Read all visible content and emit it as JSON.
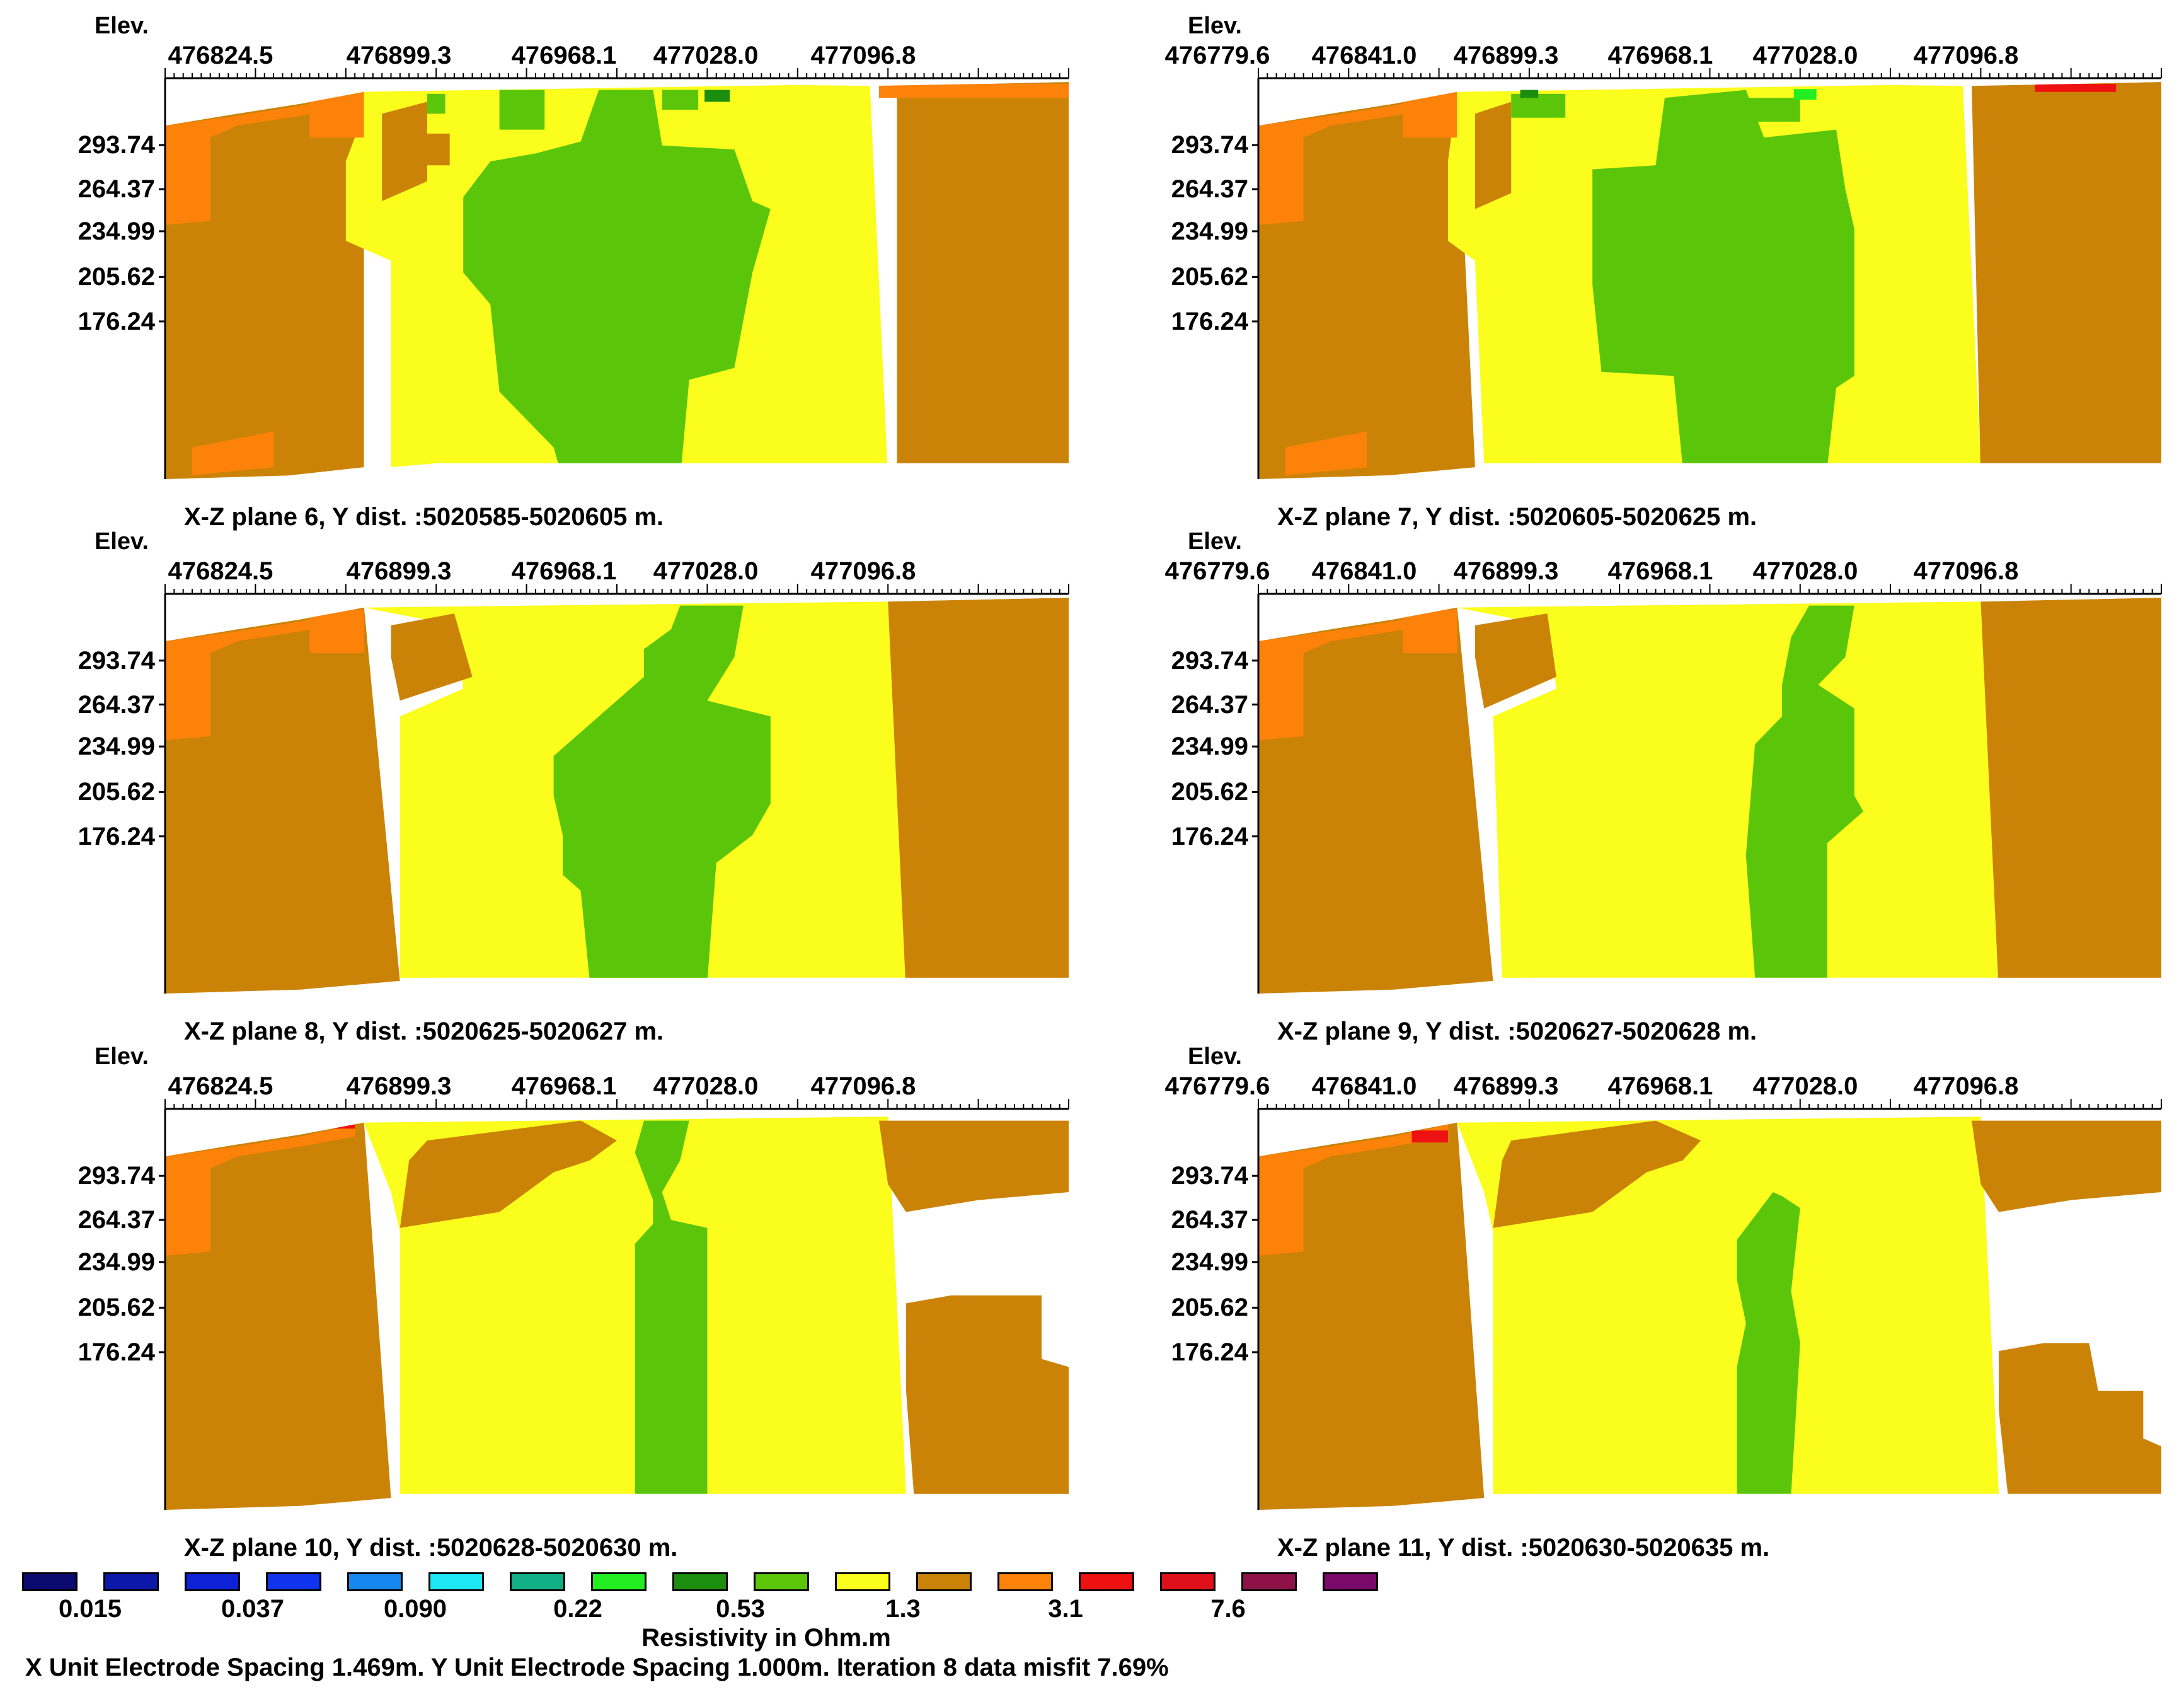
{
  "colors": {
    "orange": "#fd8209",
    "brown": "#cb8307",
    "yellow": "#fbfd1c",
    "green": "#5bc50a",
    "darkgreen": "#1b8e10",
    "brightgreen": "#22ee22",
    "red": "#ee1111"
  },
  "panels": [
    {
      "elev_label": "Elev.",
      "x_ticks": [
        "476824.5",
        "476899.3",
        "476968.1",
        "477028.0",
        "477096.8"
      ],
      "y_ticks": [
        "293.74",
        "264.37",
        "234.99",
        "205.62",
        "176.24"
      ],
      "caption": "X-Z plane 6, Y dist. :5020585-5020605 m."
    },
    {
      "elev_label": "Elev.",
      "x_ticks": [
        "476779.6",
        "476841.0",
        "476899.3",
        "476968.1",
        "477028.0",
        "477096.8"
      ],
      "y_ticks": [
        "293.74",
        "264.37",
        "234.99",
        "205.62",
        "176.24"
      ],
      "caption": "X-Z plane 7, Y dist. :5020605-5020625 m."
    },
    {
      "elev_label": "Elev.",
      "x_ticks": [
        "476824.5",
        "476899.3",
        "476968.1",
        "477028.0",
        "477096.8"
      ],
      "y_ticks": [
        "293.74",
        "264.37",
        "234.99",
        "205.62",
        "176.24"
      ],
      "caption": "X-Z plane 8, Y dist. :5020625-5020627 m."
    },
    {
      "elev_label": "Elev.",
      "x_ticks": [
        "476779.6",
        "476841.0",
        "476899.3",
        "476968.1",
        "477028.0",
        "477096.8"
      ],
      "y_ticks": [
        "293.74",
        "264.37",
        "234.99",
        "205.62",
        "176.24"
      ],
      "caption": "X-Z plane 9, Y dist. :5020627-5020628 m."
    },
    {
      "elev_label": "Elev.",
      "x_ticks": [
        "476824.5",
        "476899.3",
        "476968.1",
        "477028.0",
        "477096.8"
      ],
      "y_ticks": [
        "293.74",
        "264.37",
        "234.99",
        "205.62",
        "176.24"
      ],
      "caption": "X-Z plane 10, Y dist. :5020628-5020630 m."
    },
    {
      "elev_label": "Elev.",
      "x_ticks": [
        "476779.6",
        "476841.0",
        "476899.3",
        "476968.1",
        "477028.0",
        "477096.8"
      ],
      "y_ticks": [
        "293.74",
        "264.37",
        "234.99",
        "205.62",
        "176.24"
      ],
      "caption": "X-Z plane 11, Y dist. :5020630-5020635 m."
    }
  ],
  "legend": {
    "colors": [
      "#0a0a70",
      "#0b18a8",
      "#0d22d6",
      "#1033ee",
      "#1687ee",
      "#1ee8f5",
      "#12b087",
      "#22ee22",
      "#1b8e10",
      "#5bc50a",
      "#fbfd1c",
      "#cb8307",
      "#fd8209",
      "#ee1111",
      "#e0101a",
      "#8e1148",
      "#7a0a6a"
    ],
    "values": [
      "0.015",
      "0.037",
      "0.090",
      "0.22",
      "0.53",
      "1.3",
      "3.1",
      "7.6"
    ],
    "title": "Resistivity in Ohm.m"
  },
  "footer": "X Unit Electrode Spacing 1.469m.  Y Unit Electrode Spacing 1.000m.    Iteration 8 data misfit 7.69%",
  "chart_data": {
    "type": "heatmap",
    "title": "",
    "xlabel": "",
    "ylabel": "Elev.",
    "legend_title": "Resistivity in Ohm.m",
    "colorbar_values": [
      0.015,
      0.037,
      0.09,
      0.22,
      0.53,
      1.3,
      3.1,
      7.6
    ],
    "y_ticks": [
      293.74,
      264.37,
      234.99,
      205.62,
      176.24
    ],
    "x_ticks_left": [
      476824.5,
      476899.3,
      476968.1,
      477028.0,
      477096.8
    ],
    "x_ticks_right": [
      476779.6,
      476841.0,
      476899.3,
      476968.1,
      477028.0,
      477096.8
    ],
    "planes": [
      {
        "plane": 6,
        "y_dist": "5020585-5020605"
      },
      {
        "plane": 7,
        "y_dist": "5020605-5020625"
      },
      {
        "plane": 8,
        "y_dist": "5020625-5020627"
      },
      {
        "plane": 9,
        "y_dist": "5020627-5020628"
      },
      {
        "plane": 10,
        "y_dist": "5020628-5020630"
      },
      {
        "plane": 11,
        "y_dist": "5020630-5020635"
      }
    ],
    "iteration": 8,
    "data_misfit_percent": 7.69,
    "x_unit_electrode_spacing_m": 1.469,
    "y_unit_electrode_spacing_m": 1.0
  }
}
